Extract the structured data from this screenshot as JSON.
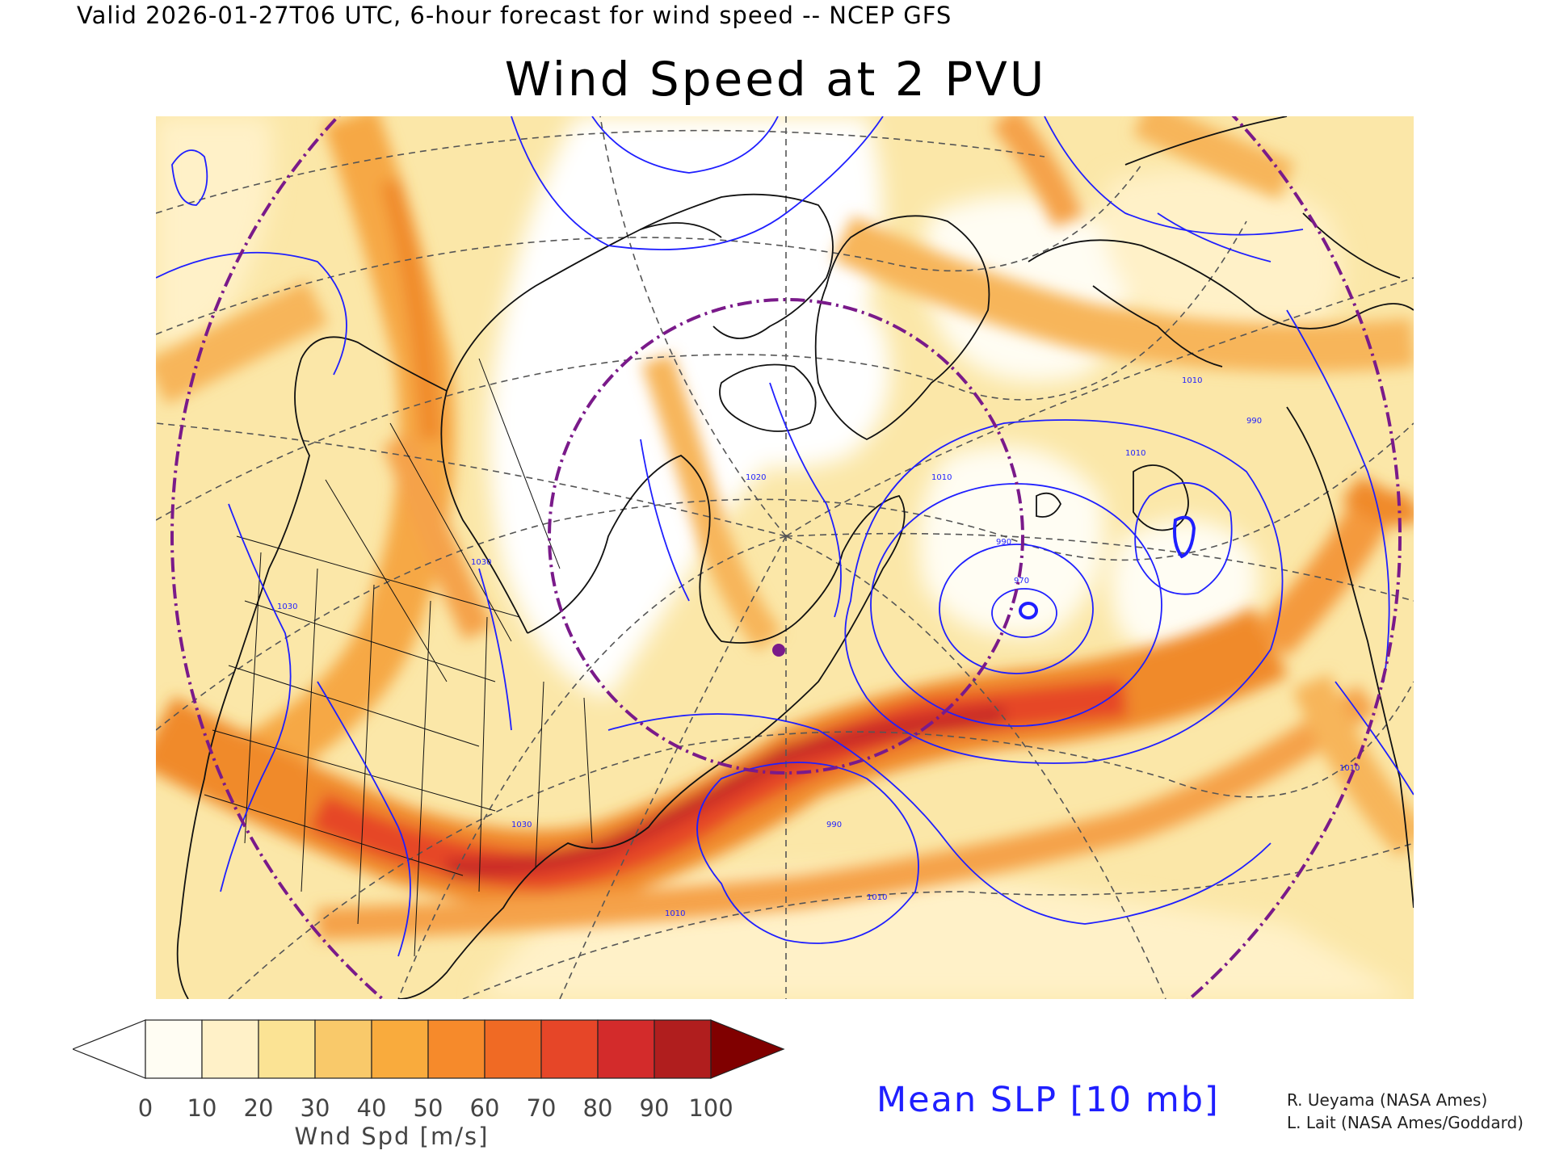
{
  "header": {
    "valid_line": "Valid 2026-01-27T06 UTC, 6-hour forecast for wind speed -- NCEP GFS",
    "title": "Wind Speed at 2 PVU"
  },
  "colorbar": {
    "title": "Wnd Spd [m/s]",
    "ticks": [
      "0",
      "10",
      "20",
      "30",
      "40",
      "50",
      "60",
      "70",
      "80",
      "90",
      "100"
    ],
    "under_color": "#ffffff",
    "over_color": "#800000",
    "colors": [
      "#fffdf3",
      "#fff1c8",
      "#fbe394",
      "#f9c96a",
      "#f9ab3d",
      "#f68a2b",
      "#f06a24",
      "#e64628",
      "#d32b2b",
      "#b01e1e"
    ]
  },
  "overlay": {
    "label": "Mean SLP [10 mb]",
    "contour_color": "#1f1fff",
    "contour_labels": [
      "1030",
      "1010",
      "990",
      "970",
      "1020"
    ]
  },
  "credits": {
    "line1": "R. Ueyama (NASA Ames)",
    "line2": "L. Lait (NASA Ames/Goddard)"
  },
  "map": {
    "features": [
      "coastlines",
      "state-province-borders",
      "graticule",
      "slp-contours",
      "purple-dash-dot-circles",
      "purple-location-marker"
    ],
    "graticule_color": "#555555",
    "boundary_color": "#111111",
    "marker_color": "#7a1a8a"
  }
}
